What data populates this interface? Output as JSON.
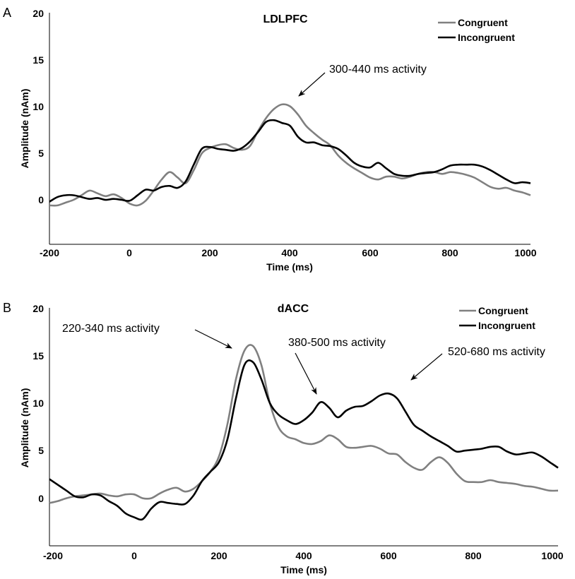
{
  "colors": {
    "congruent": "#808080",
    "incongruent": "#000000"
  },
  "chart_data": [
    {
      "panel": "A",
      "type": "line",
      "title": "LDLPFC",
      "xlabel": "Time (ms)",
      "ylabel": "Amplitude (nAm)",
      "xlim": [
        -200,
        1000
      ],
      "ylim": [
        -5,
        20
      ],
      "xticks": [
        -200,
        0,
        200,
        400,
        600,
        800,
        1000
      ],
      "yticks": [
        0,
        5,
        10,
        15,
        20
      ],
      "legend": "top-right",
      "grid": false,
      "series": [
        {
          "name": "Congruent",
          "color": "#808080",
          "x": [
            -200,
            -180,
            -160,
            -140,
            -120,
            -100,
            -80,
            -60,
            -40,
            -20,
            0,
            20,
            40,
            60,
            80,
            100,
            120,
            140,
            160,
            180,
            200,
            220,
            240,
            260,
            280,
            300,
            320,
            340,
            360,
            380,
            400,
            420,
            440,
            460,
            480,
            500,
            520,
            540,
            560,
            580,
            600,
            620,
            640,
            660,
            680,
            700,
            720,
            740,
            760,
            780,
            800,
            820,
            840,
            860,
            880,
            900,
            920,
            940,
            960,
            980,
            1000
          ],
          "y": [
            -0.8,
            -0.8,
            -0.5,
            -0.2,
            0.3,
            0.8,
            0.5,
            0.2,
            0.4,
            0.0,
            -0.6,
            -0.8,
            -0.3,
            0.8,
            2.0,
            2.8,
            2.2,
            1.6,
            3.0,
            4.8,
            5.4,
            5.7,
            5.8,
            5.4,
            5.2,
            5.6,
            7.2,
            8.6,
            9.6,
            10.1,
            9.9,
            9.0,
            7.8,
            7.0,
            6.3,
            5.7,
            4.6,
            3.8,
            3.2,
            2.7,
            2.2,
            2.0,
            2.3,
            2.3,
            2.1,
            2.3,
            2.6,
            2.8,
            2.8,
            2.6,
            2.8,
            2.7,
            2.5,
            2.2,
            1.7,
            1.2,
            1.0,
            1.1,
            0.8,
            0.6,
            0.3
          ]
        },
        {
          "name": "Incongruent",
          "color": "#000000",
          "x": [
            -200,
            -180,
            -160,
            -140,
            -120,
            -100,
            -80,
            -60,
            -40,
            -20,
            0,
            20,
            40,
            60,
            80,
            100,
            120,
            140,
            160,
            180,
            200,
            220,
            240,
            260,
            280,
            300,
            320,
            340,
            360,
            380,
            400,
            420,
            440,
            460,
            480,
            500,
            520,
            540,
            560,
            580,
            600,
            620,
            640,
            660,
            680,
            700,
            720,
            740,
            760,
            780,
            800,
            820,
            840,
            860,
            880,
            900,
            920,
            940,
            960,
            980,
            1000
          ],
          "y": [
            -0.4,
            0.1,
            0.3,
            0.3,
            0.1,
            -0.1,
            0.0,
            -0.2,
            -0.1,
            -0.2,
            -0.3,
            0.3,
            0.9,
            0.8,
            1.2,
            1.3,
            1.1,
            1.8,
            3.6,
            5.3,
            5.5,
            5.3,
            5.2,
            5.1,
            5.4,
            6.1,
            7.1,
            8.2,
            8.4,
            8.1,
            7.8,
            6.6,
            6.0,
            6.0,
            5.7,
            5.6,
            5.3,
            4.6,
            3.8,
            3.4,
            3.3,
            3.8,
            3.2,
            2.6,
            2.4,
            2.4,
            2.6,
            2.7,
            2.8,
            3.1,
            3.5,
            3.6,
            3.6,
            3.6,
            3.4,
            3.0,
            2.5,
            2.0,
            1.6,
            1.7,
            1.6
          ]
        }
      ],
      "annotations": [
        {
          "text": "300-440 ms activity",
          "x": 405,
          "y": 10.8
        }
      ]
    },
    {
      "panel": "B",
      "type": "line",
      "title": "dACC",
      "xlabel": "Time (ms)",
      "ylabel": "Amplitude (nAm)",
      "xlim": [
        -200,
        1000
      ],
      "ylim": [
        -5,
        20
      ],
      "xticks": [
        -200,
        0,
        200,
        400,
        600,
        800,
        1000
      ],
      "yticks": [
        0,
        5,
        10,
        15,
        20
      ],
      "legend": "top-right",
      "grid": false,
      "series": [
        {
          "name": "Congruent",
          "color": "#808080",
          "x": [
            -200,
            -180,
            -160,
            -140,
            -120,
            -100,
            -80,
            -60,
            -40,
            -20,
            0,
            20,
            40,
            60,
            80,
            100,
            120,
            140,
            160,
            180,
            200,
            220,
            240,
            260,
            280,
            300,
            320,
            340,
            360,
            380,
            400,
            420,
            440,
            460,
            480,
            500,
            520,
            540,
            560,
            580,
            600,
            620,
            640,
            660,
            680,
            700,
            720,
            740,
            760,
            780,
            800,
            820,
            840,
            860,
            880,
            900,
            920,
            940,
            960,
            980,
            1000
          ],
          "y": [
            -0.5,
            -0.3,
            0.0,
            0.2,
            0.3,
            0.4,
            0.5,
            0.3,
            0.2,
            0.4,
            0.4,
            0.0,
            0.0,
            0.5,
            0.9,
            1.1,
            0.7,
            1.0,
            1.8,
            2.8,
            4.4,
            7.8,
            12.5,
            15.5,
            16.0,
            14.0,
            10.0,
            7.5,
            6.5,
            6.2,
            5.8,
            5.7,
            6.0,
            6.6,
            6.2,
            5.4,
            5.3,
            5.4,
            5.5,
            5.2,
            4.7,
            4.6,
            3.8,
            3.2,
            3.0,
            3.8,
            4.3,
            3.7,
            2.6,
            1.8,
            1.7,
            1.7,
            1.9,
            1.7,
            1.6,
            1.5,
            1.3,
            1.2,
            1.0,
            0.8,
            0.8
          ]
        },
        {
          "name": "Incongruent",
          "color": "#000000",
          "x": [
            -200,
            -180,
            -160,
            -140,
            -120,
            -100,
            -80,
            -60,
            -40,
            -20,
            0,
            20,
            40,
            60,
            80,
            100,
            120,
            140,
            160,
            180,
            200,
            220,
            240,
            260,
            280,
            300,
            320,
            340,
            360,
            380,
            400,
            420,
            440,
            460,
            480,
            500,
            520,
            540,
            560,
            580,
            600,
            620,
            640,
            660,
            680,
            700,
            720,
            740,
            760,
            780,
            800,
            820,
            840,
            860,
            880,
            900,
            920,
            940,
            960,
            980,
            1000
          ],
          "y": [
            2.0,
            1.4,
            0.8,
            0.2,
            0.1,
            0.4,
            0.3,
            -0.3,
            -0.8,
            -1.6,
            -2.0,
            -2.2,
            -1.1,
            -0.4,
            -0.5,
            -0.6,
            -0.6,
            0.3,
            1.8,
            2.8,
            3.8,
            6.2,
            10.5,
            14.0,
            14.3,
            12.5,
            10.0,
            8.8,
            8.2,
            7.8,
            8.2,
            9.0,
            10.1,
            9.5,
            8.5,
            9.2,
            9.6,
            9.7,
            10.2,
            10.8,
            11.0,
            10.5,
            9.1,
            7.7,
            7.1,
            6.5,
            6.0,
            5.5,
            4.9,
            5.0,
            5.1,
            5.2,
            5.4,
            5.4,
            4.9,
            4.6,
            4.7,
            4.8,
            4.4,
            3.8,
            3.2
          ]
        }
      ],
      "annotations": [
        {
          "text": "220-340 ms activity",
          "x": 245,
          "y": 15.8
        },
        {
          "text": "380-500 ms activity",
          "x": 445,
          "y": 10.6
        },
        {
          "text": "520-680 ms activity",
          "x": 620,
          "y": 12.5
        }
      ]
    }
  ]
}
